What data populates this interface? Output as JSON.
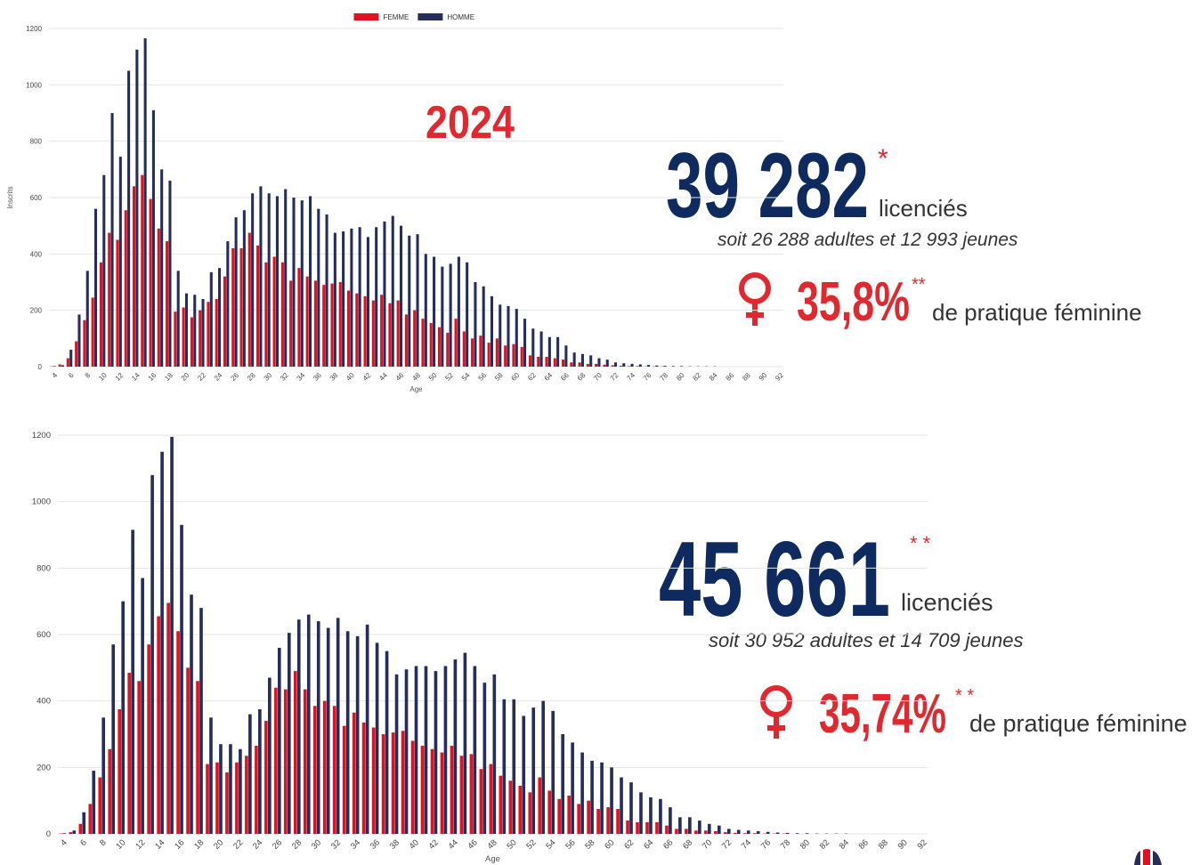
{
  "chart_data": [
    {
      "type": "bar",
      "annotation": "2024",
      "x_label": "Age",
      "y_label": "Inscrits",
      "legend": "top",
      "grid": true,
      "categories": [
        "4",
        null,
        "6",
        null,
        "8",
        null,
        "10",
        null,
        "12",
        null,
        "14",
        null,
        "16",
        null,
        "18",
        null,
        "20",
        null,
        "22",
        null,
        "24",
        null,
        "26",
        null,
        "28",
        null,
        "30",
        null,
        "32",
        null,
        "34",
        null,
        "36",
        null,
        "38",
        null,
        "40",
        null,
        "42",
        null,
        "44",
        null,
        "46",
        null,
        "48",
        null,
        "50",
        null,
        "52",
        null,
        "54",
        null,
        "56",
        null,
        "58",
        null,
        "60",
        null,
        "62",
        null,
        "64",
        null,
        "66",
        null,
        "68",
        null,
        "70",
        null,
        "72",
        null,
        "74",
        null,
        "76",
        null,
        "78",
        null,
        "80",
        null,
        "82",
        null,
        "84",
        null,
        "86",
        null,
        "88",
        null,
        "90",
        null,
        "92"
      ],
      "ylim": [
        0,
        1200
      ],
      "yticks": [
        0,
        200,
        400,
        600,
        800,
        1000,
        1200
      ],
      "series": [
        {
          "name": "FEMME",
          "color": "#e3101d",
          "values": [
            1,
            8,
            30,
            90,
            165,
            245,
            370,
            475,
            450,
            555,
            640,
            680,
            595,
            490,
            445,
            195,
            210,
            175,
            200,
            230,
            240,
            320,
            420,
            420,
            475,
            430,
            370,
            390,
            370,
            305,
            350,
            320,
            305,
            290,
            295,
            300,
            270,
            260,
            250,
            235,
            255,
            225,
            235,
            185,
            200,
            170,
            155,
            140,
            120,
            170,
            125,
            100,
            110,
            85,
            100,
            75,
            80,
            70,
            40,
            35,
            35,
            30,
            25,
            15,
            15,
            10,
            10,
            7,
            5,
            3,
            2,
            2,
            1,
            1,
            1,
            0,
            0,
            0,
            0,
            0,
            0,
            0,
            0,
            0,
            0,
            0,
            0,
            0,
            0
          ]
        },
        {
          "name": "HOMME",
          "color": "#252d5c",
          "values": [
            2,
            5,
            60,
            185,
            340,
            560,
            680,
            900,
            745,
            1050,
            1125,
            1165,
            910,
            700,
            660,
            340,
            260,
            255,
            240,
            335,
            350,
            445,
            530,
            555,
            615,
            640,
            615,
            605,
            630,
            600,
            590,
            605,
            560,
            540,
            475,
            480,
            490,
            495,
            460,
            495,
            515,
            535,
            500,
            465,
            470,
            400,
            390,
            355,
            365,
            390,
            370,
            300,
            285,
            250,
            220,
            215,
            205,
            170,
            135,
            125,
            105,
            105,
            75,
            50,
            45,
            40,
            30,
            25,
            15,
            12,
            10,
            8,
            6,
            4,
            3,
            2,
            2,
            1,
            1,
            1,
            1,
            0,
            0,
            0,
            0,
            0,
            0,
            0,
            0
          ]
        }
      ]
    },
    {
      "type": "bar",
      "x_label": "Age",
      "grid": true,
      "categories": [
        "4",
        null,
        "6",
        null,
        "8",
        null,
        "10",
        null,
        "12",
        null,
        "14",
        null,
        "16",
        null,
        "18",
        null,
        "20",
        null,
        "22",
        null,
        "24",
        null,
        "26",
        null,
        "28",
        null,
        "30",
        null,
        "32",
        null,
        "34",
        null,
        "36",
        null,
        "38",
        null,
        "40",
        null,
        "42",
        null,
        "44",
        null,
        "46",
        null,
        "48",
        null,
        "50",
        null,
        "52",
        null,
        "54",
        null,
        "56",
        null,
        "58",
        null,
        "60",
        null,
        "62",
        null,
        "64",
        null,
        "66",
        null,
        "68",
        null,
        "70",
        null,
        "72",
        null,
        "74",
        null,
        "76",
        null,
        "78",
        null,
        "80",
        null,
        "82",
        null,
        "84",
        null,
        "86",
        null,
        "88",
        null,
        "90",
        null,
        "92"
      ],
      "ylim": [
        0,
        1200
      ],
      "yticks": [
        0,
        200,
        400,
        600,
        800,
        1000,
        1200
      ],
      "series": [
        {
          "color": "#e3101d",
          "values": [
            1,
            5,
            30,
            90,
            170,
            255,
            375,
            485,
            460,
            570,
            655,
            695,
            610,
            500,
            460,
            210,
            215,
            185,
            215,
            235,
            265,
            340,
            440,
            435,
            490,
            435,
            385,
            400,
            385,
            325,
            365,
            335,
            320,
            300,
            305,
            310,
            280,
            265,
            255,
            245,
            265,
            235,
            240,
            195,
            210,
            175,
            160,
            145,
            125,
            170,
            130,
            105,
            115,
            90,
            100,
            75,
            80,
            75,
            40,
            35,
            35,
            35,
            25,
            15,
            15,
            10,
            10,
            8,
            5,
            3,
            2,
            2,
            1,
            1,
            1,
            0,
            0,
            0,
            0,
            0,
            0,
            0,
            0,
            0,
            0,
            0,
            0,
            0,
            0
          ]
        },
        {
          "color": "#252d5c",
          "values": [
            2,
            10,
            65,
            190,
            350,
            570,
            700,
            915,
            770,
            1080,
            1150,
            1195,
            930,
            720,
            680,
            350,
            270,
            270,
            255,
            360,
            375,
            470,
            560,
            605,
            645,
            660,
            640,
            620,
            650,
            610,
            595,
            630,
            575,
            550,
            480,
            495,
            505,
            505,
            490,
            505,
            525,
            545,
            505,
            455,
            480,
            405,
            405,
            355,
            380,
            400,
            370,
            300,
            275,
            245,
            220,
            215,
            200,
            170,
            155,
            125,
            110,
            105,
            80,
            50,
            50,
            40,
            30,
            25,
            15,
            12,
            10,
            8,
            6,
            4,
            3,
            2,
            2,
            1,
            1,
            1,
            1,
            0,
            0,
            0,
            0,
            0,
            0,
            0,
            0
          ]
        }
      ]
    }
  ],
  "stats": [
    {
      "total": "39 282",
      "total_note": "*",
      "unit": "licenciés",
      "detail": "soit 26 288 adultes et 12 993 jeunes",
      "female_share": "35,8%",
      "female_note": "**",
      "female_text": "de pratique féminine"
    },
    {
      "total": "45 661",
      "total_note": "* *",
      "unit": "licenciés",
      "detail": "soit 30 952 adultes et 14 709 jeunes",
      "female_share": "35,74%",
      "female_note": "* *",
      "female_text": "de pratique féminine"
    }
  ]
}
